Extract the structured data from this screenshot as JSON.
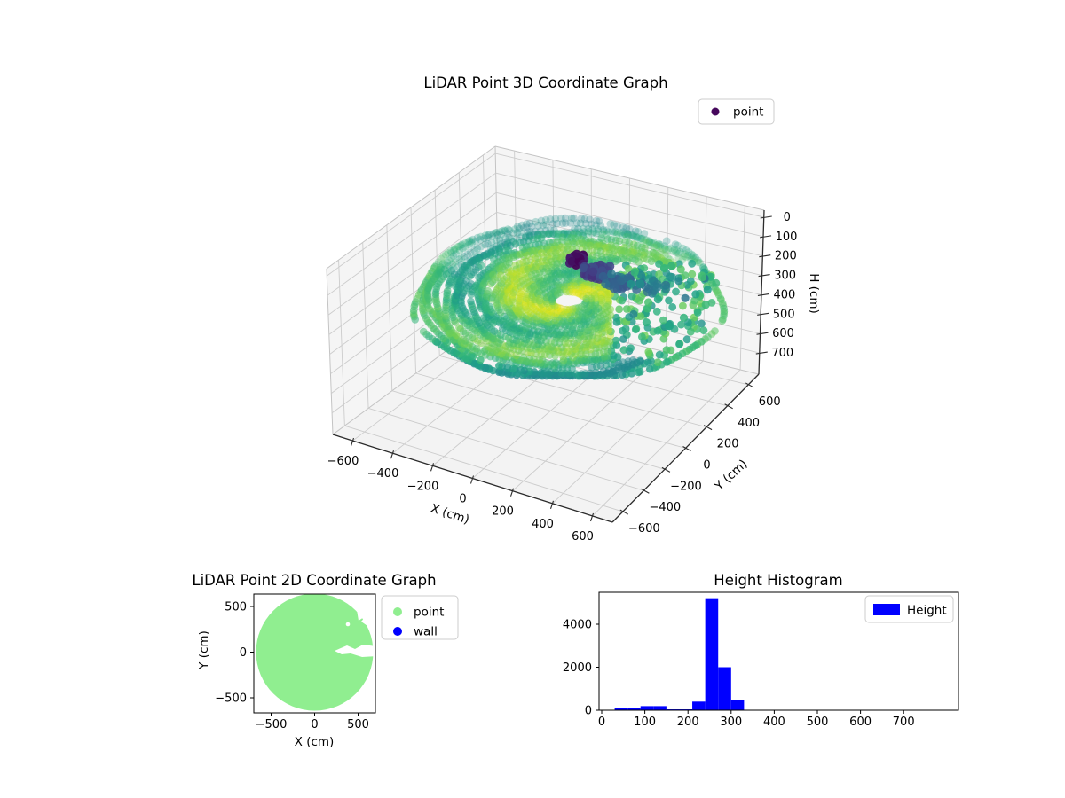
{
  "plot3d": {
    "title": "LiDAR Point 3D Coordinate Graph",
    "xlabel": "X (cm)",
    "ylabel": "Y (cm)",
    "zlabel": "H (cm)",
    "xtick_labels": [
      "−600",
      "−400",
      "−200",
      "0",
      "200",
      "400",
      "600"
    ],
    "ytick_labels": [
      "−600",
      "−400",
      "−200",
      "0",
      "200",
      "400",
      "600"
    ],
    "ztick_labels": [
      "0",
      "100",
      "200",
      "300",
      "400",
      "500",
      "600",
      "700"
    ],
    "legend": {
      "items": [
        {
          "label": "point",
          "color": "#46085c",
          "marker": "circle"
        }
      ]
    }
  },
  "plot2d": {
    "title": "LiDAR Point 2D Coordinate Graph",
    "xlabel": "X (cm)",
    "ylabel": "Y (cm)",
    "xtick_labels": [
      "−500",
      "0",
      "500"
    ],
    "ytick_labels": [
      "500",
      "0",
      "−500"
    ],
    "legend": {
      "items": [
        {
          "label": "point",
          "color": "#90EE90",
          "marker": "circle"
        },
        {
          "label": "wall",
          "color": "#0000FF",
          "marker": "circle"
        }
      ]
    }
  },
  "hist": {
    "title": "Height Histogram",
    "xtick_labels": [
      "0",
      "100",
      "200",
      "300",
      "400",
      "500",
      "600",
      "700"
    ],
    "ytick_labels": [
      "0",
      "2000",
      "4000"
    ],
    "legend": {
      "items": [
        {
          "label": "Height",
          "color": "#0000FF",
          "marker": "patch"
        }
      ]
    }
  },
  "chart_data": [
    {
      "id": "lidar-3d",
      "type": "scatter",
      "projection": "3d",
      "title": "LiDAR Point 3D Coordinate Graph",
      "xlabel": "X (cm)",
      "ylabel": "Y (cm)",
      "zlabel": "H (cm)",
      "xticks": [
        -600,
        -400,
        -200,
        0,
        200,
        400,
        600
      ],
      "yticks": [
        -600,
        -400,
        -200,
        0,
        200,
        400,
        600
      ],
      "zticks": [
        0,
        100,
        200,
        300,
        400,
        500,
        600,
        700
      ],
      "xlim": [
        -700,
        700
      ],
      "ylim": [
        -700,
        700
      ],
      "zlim": [
        0,
        800
      ],
      "zaxis_inverted": true,
      "grid": true,
      "legend_entries": [
        "point"
      ],
      "colormap": "viridis",
      "series": [
        {
          "name": "point",
          "n_points_approx": 5000,
          "structure": "Horizontal circular disk of points, radius ~650 cm, centered near origin at H~240 cm (floor scan), colored by height with viridis (green to yellow wavy concentric bands); a dense dark-purple/blue cluster of low-H points (H ~0-150) sits near the center (X ~0-150, Y ~0-150); sparse teal/green points scattered to the right of the cluster"
        }
      ]
    },
    {
      "id": "lidar-2d",
      "type": "scatter",
      "title": "LiDAR Point 2D Coordinate Graph",
      "xlabel": "X (cm)",
      "ylabel": "Y (cm)",
      "xticks": [
        -500,
        0,
        500
      ],
      "yticks": [
        -500,
        0,
        500
      ],
      "xlim": [
        -700,
        700
      ],
      "ylim": [
        -680,
        640
      ],
      "legend_entries": [
        "point",
        "wall"
      ],
      "series": [
        {
          "name": "point",
          "color": "#90EE90",
          "structure": "Dense filled disk of radius ~650 cm centered at (0,0); small white gaps: a notch near the top-right edge (~X 350-650, Y 400-650) and a jagged horizontal slit along Y~0 for X>200"
        },
        {
          "name": "wall",
          "color": "#0000FF",
          "structure": "no visible points"
        }
      ]
    },
    {
      "id": "height-histogram",
      "type": "histogram",
      "title": "Height Histogram",
      "legend_entries": [
        "Height"
      ],
      "bar_color": "#0000FF",
      "bin_edges": [
        30,
        60,
        90,
        120,
        150,
        180,
        210,
        240,
        270,
        300,
        330
      ],
      "counts": [
        100,
        100,
        190,
        190,
        40,
        40,
        400,
        5210,
        2000,
        480
      ],
      "xticks": [
        0,
        100,
        200,
        300,
        400,
        500,
        600,
        700
      ],
      "yticks": [
        0,
        2000,
        4000
      ],
      "xlim": [
        -6,
        830
      ],
      "ylim": [
        0,
        5470
      ]
    }
  ]
}
